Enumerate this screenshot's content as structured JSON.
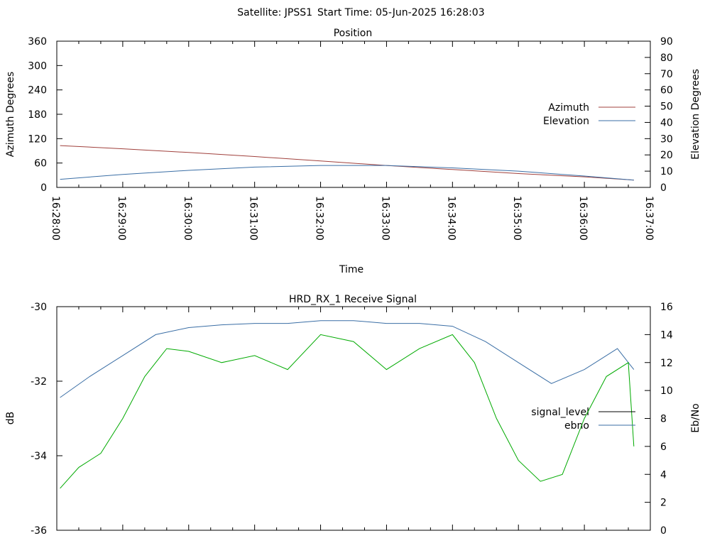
{
  "header": {
    "satellite": "Satellite: JPSS1",
    "start_time": "Start Time: 05-Jun-2025 16:28:03"
  },
  "chart_data": [
    {
      "type": "line",
      "title": "Position",
      "xlabel": "Time",
      "ylabel": "Azimuth Degrees",
      "y2label": "Elevation Degrees",
      "xlim": [
        "16:28:00",
        "16:37:00"
      ],
      "ylim": [
        0,
        360
      ],
      "y2lim": [
        0,
        90
      ],
      "xticks": [
        "16:28:00",
        "16:29:00",
        "16:30:00",
        "16:31:00",
        "16:32:00",
        "16:33:00",
        "16:34:00",
        "16:35:00",
        "16:36:00",
        "16:37:00"
      ],
      "yticks": [
        "0",
        "60",
        "120",
        "180",
        "240",
        "300",
        "360"
      ],
      "y2ticks": [
        "0",
        "10",
        "20",
        "30",
        "40",
        "50",
        "60",
        "70",
        "80",
        "90"
      ],
      "legend": "right",
      "series": [
        {
          "name": "Azimuth",
          "axis": "y",
          "color": "#a0403c",
          "x": [
            "16:28:03",
            "16:29:00",
            "16:30:00",
            "16:31:00",
            "16:32:00",
            "16:33:00",
            "16:34:00",
            "16:35:00",
            "16:36:00",
            "16:36:45"
          ],
          "values": [
            103,
            95,
            86,
            76,
            65,
            54,
            44,
            34,
            26,
            18
          ]
        },
        {
          "name": "Elevation",
          "axis": "y2",
          "color": "#3a6ea5",
          "x": [
            "16:28:03",
            "16:29:00",
            "16:30:00",
            "16:31:00",
            "16:32:00",
            "16:33:00",
            "16:34:00",
            "16:35:00",
            "16:36:00",
            "16:36:45"
          ],
          "values": [
            5,
            8,
            10.5,
            12.5,
            13.5,
            13.5,
            12,
            10,
            7,
            4.5
          ]
        }
      ]
    },
    {
      "type": "line",
      "title": "HRD_RX_1 Receive Signal",
      "ylabel": "dB",
      "y2label": "Eb/No",
      "xlim": [
        "16:28:00",
        "16:37:00"
      ],
      "ylim": [
        -36,
        -30
      ],
      "y2lim": [
        0,
        16
      ],
      "yticks": [
        "-30",
        "-32",
        "-34",
        "-36"
      ],
      "y2ticks": [
        "0",
        "2",
        "4",
        "6",
        "8",
        "10",
        "12",
        "14",
        "16"
      ],
      "legend": "right",
      "series": [
        {
          "name": "signal_level",
          "axis": "y",
          "color": "#000000",
          "x": [],
          "values": []
        },
        {
          "name": "ebno",
          "axis": "y2",
          "color": "#3a6ea5",
          "x": [
            "16:28:03",
            "16:28:30",
            "16:29:00",
            "16:29:30",
            "16:30:00",
            "16:30:30",
            "16:31:00",
            "16:31:30",
            "16:32:00",
            "16:32:30",
            "16:33:00",
            "16:33:30",
            "16:34:00",
            "16:34:30",
            "16:35:00",
            "16:35:30",
            "16:36:00",
            "16:36:30",
            "16:36:45"
          ],
          "values": [
            9.5,
            11,
            12.5,
            14,
            14.5,
            14.7,
            14.8,
            14.8,
            15,
            15,
            14.8,
            14.8,
            14.6,
            13.5,
            12,
            10.5,
            11.5,
            13,
            11.5
          ]
        },
        {
          "name": "",
          "axis": "y2",
          "color": "#00aa00",
          "x": [
            "16:28:03",
            "16:28:20",
            "16:28:40",
            "16:29:00",
            "16:29:20",
            "16:29:40",
            "16:30:00",
            "16:30:30",
            "16:31:00",
            "16:31:30",
            "16:32:00",
            "16:32:30",
            "16:33:00",
            "16:33:30",
            "16:34:00",
            "16:34:20",
            "16:34:40",
            "16:35:00",
            "16:35:20",
            "16:35:40",
            "16:36:00",
            "16:36:20",
            "16:36:40",
            "16:36:45"
          ],
          "values": [
            3,
            4.5,
            5.5,
            8,
            11,
            13,
            12.8,
            12,
            12.5,
            11.5,
            14,
            13.5,
            11.5,
            13,
            14,
            12,
            8,
            5,
            3.5,
            4,
            8,
            11,
            12,
            6
          ]
        }
      ]
    }
  ]
}
